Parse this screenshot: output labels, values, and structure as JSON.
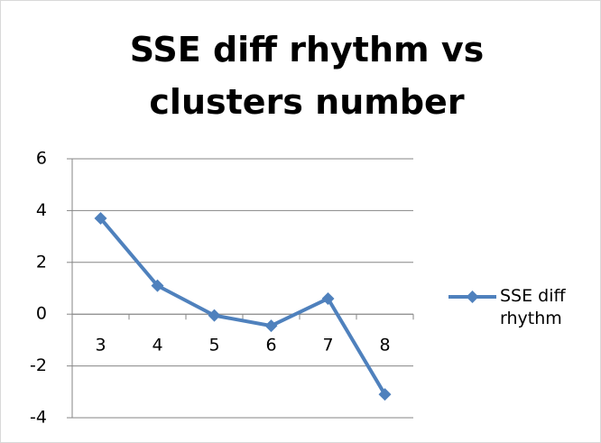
{
  "chart_data": {
    "type": "line",
    "title": "SSE diff rhythm vs clusters number",
    "categories": [
      "3",
      "4",
      "5",
      "6",
      "7",
      "8"
    ],
    "series": [
      {
        "name": "SSE diff rhythm",
        "color": "#4f81bd",
        "values": [
          3.7,
          1.1,
          -0.05,
          -0.45,
          0.6,
          -3.1
        ]
      }
    ],
    "ylim": [
      -4,
      6
    ],
    "yticks": [
      -4,
      -2,
      0,
      2,
      4,
      6
    ],
    "grid": true,
    "legend": "right"
  }
}
